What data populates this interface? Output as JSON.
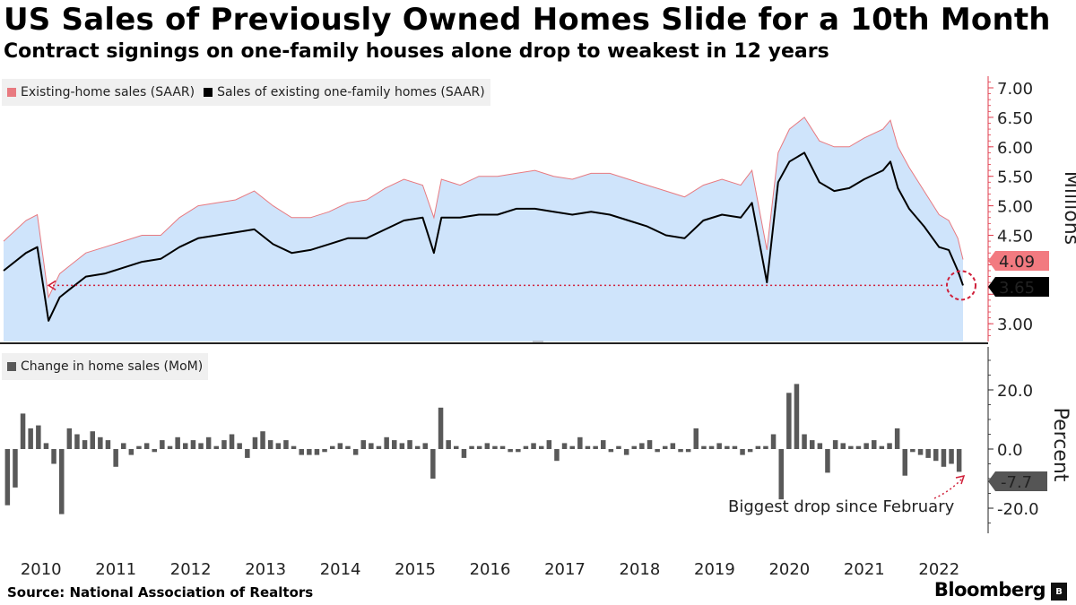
{
  "title": "US Sales of Previously Owned Homes Slide for a 10th Month",
  "subtitle": "Contract signings on one-family houses alone drop to weakest in 12 years",
  "source": "Source: National Association of Realtors",
  "brand": "Bloomberg",
  "colors": {
    "area_fill": "#cfe4fb",
    "area_line": "#e87a80",
    "single_family_line": "#000000",
    "bar": "#595959",
    "axis": "#e03c4c",
    "annotation": "#d0203a",
    "legend_bg": "#f0f0f0"
  },
  "chart_data": [
    {
      "type": "area",
      "legend": [
        {
          "label": "Existing-home sales (SAAR)",
          "color": "#e87a80"
        },
        {
          "label": "Sales of existing one-family homes (SAAR)",
          "color": "#000000"
        }
      ],
      "ylabel": "Millions",
      "ylim": [
        2.7,
        7.2
      ],
      "yticks": [
        "7.00",
        "6.50",
        "6.00",
        "5.50",
        "5.00",
        "4.50",
        "4.00",
        "3.50",
        "3.00"
      ],
      "x_years": [
        "2010",
        "2011",
        "2012",
        "2013",
        "2014",
        "2015",
        "2016",
        "2017",
        "2018",
        "2019",
        "2020",
        "2021",
        "2022"
      ],
      "x": [
        2010.0,
        2010.3,
        2010.45,
        2010.6,
        2010.75,
        2010.9,
        2011.1,
        2011.35,
        2011.6,
        2011.85,
        2012.1,
        2012.35,
        2012.6,
        2012.85,
        2013.1,
        2013.35,
        2013.6,
        2013.85,
        2014.1,
        2014.35,
        2014.6,
        2014.85,
        2015.1,
        2015.35,
        2015.6,
        2015.75,
        2015.85,
        2016.1,
        2016.35,
        2016.6,
        2016.85,
        2017.1,
        2017.35,
        2017.6,
        2017.85,
        2018.1,
        2018.35,
        2018.6,
        2018.85,
        2019.1,
        2019.35,
        2019.6,
        2019.85,
        2020.0,
        2020.2,
        2020.35,
        2020.5,
        2020.7,
        2020.9,
        2021.1,
        2021.3,
        2021.5,
        2021.75,
        2021.85,
        2021.95,
        2022.1,
        2022.3,
        2022.5,
        2022.63,
        2022.75,
        2022.82
      ],
      "series": [
        {
          "name": "Existing-home sales (SAAR)",
          "values": [
            4.4,
            4.75,
            4.85,
            3.45,
            3.85,
            4.0,
            4.2,
            4.3,
            4.4,
            4.5,
            4.5,
            4.8,
            5.0,
            5.05,
            5.1,
            5.25,
            5.0,
            4.8,
            4.8,
            4.9,
            5.05,
            5.1,
            5.3,
            5.45,
            5.35,
            4.8,
            5.45,
            5.35,
            5.5,
            5.5,
            5.55,
            5.6,
            5.5,
            5.45,
            5.55,
            5.55,
            5.45,
            5.35,
            5.25,
            5.15,
            5.35,
            5.45,
            5.35,
            5.6,
            4.25,
            5.9,
            6.3,
            6.5,
            6.1,
            6.0,
            6.0,
            6.15,
            6.3,
            6.45,
            6.0,
            5.65,
            5.25,
            4.85,
            4.75,
            4.45,
            4.09
          ]
        },
        {
          "name": "Sales of existing one-family homes (SAAR)",
          "values": [
            3.9,
            4.2,
            4.3,
            3.05,
            3.45,
            3.6,
            3.8,
            3.85,
            3.95,
            4.05,
            4.1,
            4.3,
            4.45,
            4.5,
            4.55,
            4.6,
            4.35,
            4.2,
            4.25,
            4.35,
            4.45,
            4.45,
            4.6,
            4.75,
            4.8,
            4.2,
            4.8,
            4.8,
            4.85,
            4.85,
            4.95,
            4.95,
            4.9,
            4.85,
            4.9,
            4.85,
            4.75,
            4.65,
            4.5,
            4.45,
            4.75,
            4.85,
            4.8,
            5.05,
            3.7,
            5.4,
            5.75,
            5.9,
            5.4,
            5.25,
            5.3,
            5.45,
            5.6,
            5.75,
            5.3,
            4.95,
            4.65,
            4.3,
            4.25,
            3.9,
            3.65
          ]
        }
      ],
      "last_values": {
        "existing": "4.09",
        "one_family": "3.65"
      }
    },
    {
      "type": "bar",
      "legend": [
        {
          "label": "Change in home sales (MoM)",
          "color": "#595959"
        }
      ],
      "ylabel": "Percent",
      "ylim": [
        -28,
        30
      ],
      "yticks": [
        "20.0",
        "0.0",
        "-20.0"
      ],
      "values": [
        -19,
        -13,
        12,
        7,
        8,
        2,
        -5,
        -22,
        7,
        5,
        3,
        6,
        4,
        3,
        -6,
        2,
        -2,
        1,
        2,
        -1,
        3,
        1,
        4,
        2,
        3,
        2,
        4,
        1,
        3,
        5,
        2,
        -3,
        4,
        6,
        3,
        2,
        3,
        1,
        -2,
        -2,
        -2,
        -1,
        1,
        2,
        1,
        -2,
        3,
        2,
        1,
        4,
        3,
        2,
        3,
        1,
        2,
        -10,
        14,
        3,
        1,
        -3,
        1,
        1,
        2,
        1,
        1,
        -1,
        -1,
        1,
        2,
        1,
        3,
        -4,
        2,
        1,
        4,
        1,
        1,
        3,
        -1,
        1,
        -2,
        1,
        2,
        3,
        -1,
        1,
        2,
        -1,
        -1,
        7,
        1,
        1,
        2,
        1,
        1,
        -2,
        -1,
        1,
        1,
        5,
        -17,
        19,
        22,
        5,
        3,
        2,
        -8,
        3,
        2,
        1,
        1,
        2,
        3,
        1,
        2,
        7,
        -9,
        -1,
        -2,
        -3,
        -4,
        -6,
        -5,
        -7.7
      ],
      "last_value": "-7.7",
      "annotation": "Biggest drop since February"
    }
  ]
}
